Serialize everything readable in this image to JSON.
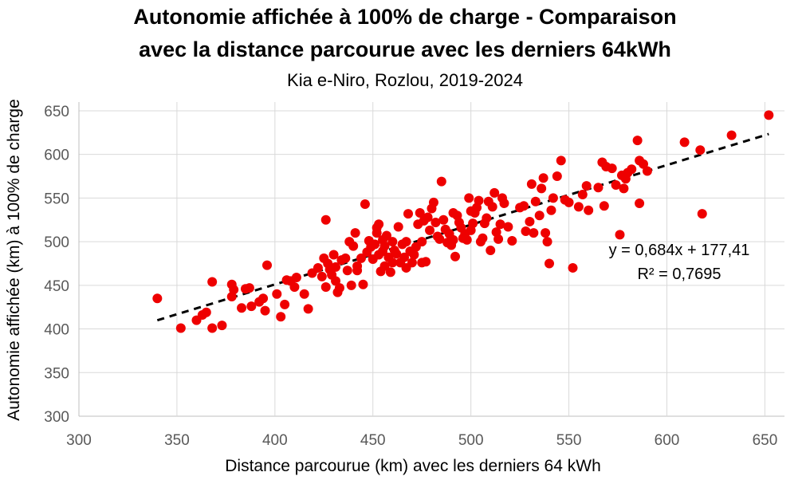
{
  "chart_data": {
    "type": "scatter",
    "title_line1": "Autonomie affichée à 100% de charge - Comparaison",
    "title_line2": "avec la distance parcourue avec les derniers 64kWh",
    "subtitle": "Kia e-Niro, Rozlou, 2019-2024",
    "xlabel": "Distance parcourue (km) avec les derniers 64 kWh",
    "ylabel": "Autonomie affichée (km) à 100% de charge",
    "xlim": [
      300,
      660
    ],
    "ylim": [
      300,
      660
    ],
    "xticks": [
      300,
      350,
      400,
      450,
      500,
      550,
      600,
      650
    ],
    "yticks": [
      300,
      350,
      400,
      450,
      500,
      550,
      600,
      650
    ],
    "grid": true,
    "point_color": "#ee0000",
    "trendline": {
      "type": "linear",
      "slope": 0.684,
      "intercept": 177.41,
      "x_range": [
        340,
        652
      ],
      "color": "#000000",
      "equation_label": "y = 0,684x + 177,41",
      "r2_label": "R² = 0,7695"
    },
    "points": [
      [
        340,
        435
      ],
      [
        352,
        401
      ],
      [
        360,
        410
      ],
      [
        363,
        416
      ],
      [
        365,
        419
      ],
      [
        368,
        454
      ],
      [
        368,
        401
      ],
      [
        373,
        404
      ],
      [
        378,
        451
      ],
      [
        378,
        437
      ],
      [
        379,
        445
      ],
      [
        383,
        424
      ],
      [
        385,
        446
      ],
      [
        387,
        447
      ],
      [
        388,
        426
      ],
      [
        392,
        431
      ],
      [
        394,
        435
      ],
      [
        395,
        421
      ],
      [
        396,
        473
      ],
      [
        401,
        440
      ],
      [
        403,
        414
      ],
      [
        405,
        428
      ],
      [
        406,
        456
      ],
      [
        408,
        455
      ],
      [
        410,
        448
      ],
      [
        411,
        459
      ],
      [
        415,
        440
      ],
      [
        417,
        423
      ],
      [
        419,
        464
      ],
      [
        422,
        470
      ],
      [
        424,
        460
      ],
      [
        425,
        481
      ],
      [
        426,
        525
      ],
      [
        426,
        448
      ],
      [
        427,
        475
      ],
      [
        428,
        468
      ],
      [
        429,
        462
      ],
      [
        430,
        485
      ],
      [
        431,
        471
      ],
      [
        431,
        455
      ],
      [
        432,
        442
      ],
      [
        433,
        447
      ],
      [
        434,
        479
      ],
      [
        436,
        481
      ],
      [
        437,
        467
      ],
      [
        438,
        500
      ],
      [
        439,
        450
      ],
      [
        440,
        495
      ],
      [
        441,
        510
      ],
      [
        442,
        472
      ],
      [
        442,
        467
      ],
      [
        444,
        481
      ],
      [
        445,
        451
      ],
      [
        446,
        543
      ],
      [
        447,
        488
      ],
      [
        448,
        501
      ],
      [
        449,
        494
      ],
      [
        450,
        480
      ],
      [
        451,
        497
      ],
      [
        452,
        510
      ],
      [
        452,
        516
      ],
      [
        453,
        520
      ],
      [
        453,
        485
      ],
      [
        454,
        466
      ],
      [
        455,
        489
      ],
      [
        455,
        502
      ],
      [
        456,
        495
      ],
      [
        456,
        472
      ],
      [
        457,
        507
      ],
      [
        458,
        482
      ],
      [
        459,
        465
      ],
      [
        460,
        500
      ],
      [
        460,
        476
      ],
      [
        461,
        490
      ],
      [
        462,
        486
      ],
      [
        463,
        517
      ],
      [
        464,
        476
      ],
      [
        465,
        497
      ],
      [
        466,
        482
      ],
      [
        467,
        500
      ],
      [
        467,
        470
      ],
      [
        468,
        532
      ],
      [
        469,
        489
      ],
      [
        470,
        476
      ],
      [
        471,
        485
      ],
      [
        472,
        494
      ],
      [
        473,
        520
      ],
      [
        474,
        533
      ],
      [
        475,
        500
      ],
      [
        475,
        476
      ],
      [
        476,
        524
      ],
      [
        477,
        477
      ],
      [
        478,
        528
      ],
      [
        479,
        513
      ],
      [
        480,
        538
      ],
      [
        481,
        545
      ],
      [
        482,
        522
      ],
      [
        483,
        506
      ],
      [
        484,
        503
      ],
      [
        485,
        569
      ],
      [
        486,
        525
      ],
      [
        487,
        514
      ],
      [
        488,
        499
      ],
      [
        489,
        509
      ],
      [
        490,
        496
      ],
      [
        491,
        502
      ],
      [
        491,
        533
      ],
      [
        492,
        483
      ],
      [
        493,
        530
      ],
      [
        494,
        522
      ],
      [
        495,
        516
      ],
      [
        496,
        504
      ],
      [
        497,
        509
      ],
      [
        498,
        502
      ],
      [
        499,
        550
      ],
      [
        500,
        535
      ],
      [
        500,
        513
      ],
      [
        501,
        521
      ],
      [
        502,
        533
      ],
      [
        503,
        539
      ],
      [
        504,
        547
      ],
      [
        505,
        500
      ],
      [
        506,
        504
      ],
      [
        507,
        521
      ],
      [
        508,
        527
      ],
      [
        509,
        546
      ],
      [
        510,
        490
      ],
      [
        511,
        540
      ],
      [
        512,
        556
      ],
      [
        513,
        511
      ],
      [
        514,
        503
      ],
      [
        515,
        520
      ],
      [
        516,
        550
      ],
      [
        517,
        544
      ],
      [
        519,
        517
      ],
      [
        521,
        501
      ],
      [
        525,
        539
      ],
      [
        527,
        541
      ],
      [
        528,
        512
      ],
      [
        530,
        523
      ],
      [
        531,
        566
      ],
      [
        532,
        510
      ],
      [
        533,
        546
      ],
      [
        535,
        530
      ],
      [
        536,
        561
      ],
      [
        537,
        573
      ],
      [
        538,
        510
      ],
      [
        539,
        500
      ],
      [
        540,
        475
      ],
      [
        541,
        536
      ],
      [
        542,
        550
      ],
      [
        544,
        575
      ],
      [
        546,
        593
      ],
      [
        548,
        548
      ],
      [
        550,
        545
      ],
      [
        552,
        470
      ],
      [
        555,
        540
      ],
      [
        557,
        554
      ],
      [
        559,
        564
      ],
      [
        560,
        536
      ],
      [
        565,
        562
      ],
      [
        567,
        591
      ],
      [
        568,
        541
      ],
      [
        569,
        586
      ],
      [
        572,
        584
      ],
      [
        574,
        565
      ],
      [
        576,
        508
      ],
      [
        577,
        576
      ],
      [
        578,
        561
      ],
      [
        579,
        572
      ],
      [
        580,
        579
      ],
      [
        582,
        583
      ],
      [
        585,
        616
      ],
      [
        586,
        544
      ],
      [
        586,
        593
      ],
      [
        588,
        589
      ],
      [
        590,
        581
      ],
      [
        609,
        614
      ],
      [
        617,
        605
      ],
      [
        618,
        532
      ],
      [
        633,
        622
      ],
      [
        652,
        645
      ]
    ]
  }
}
